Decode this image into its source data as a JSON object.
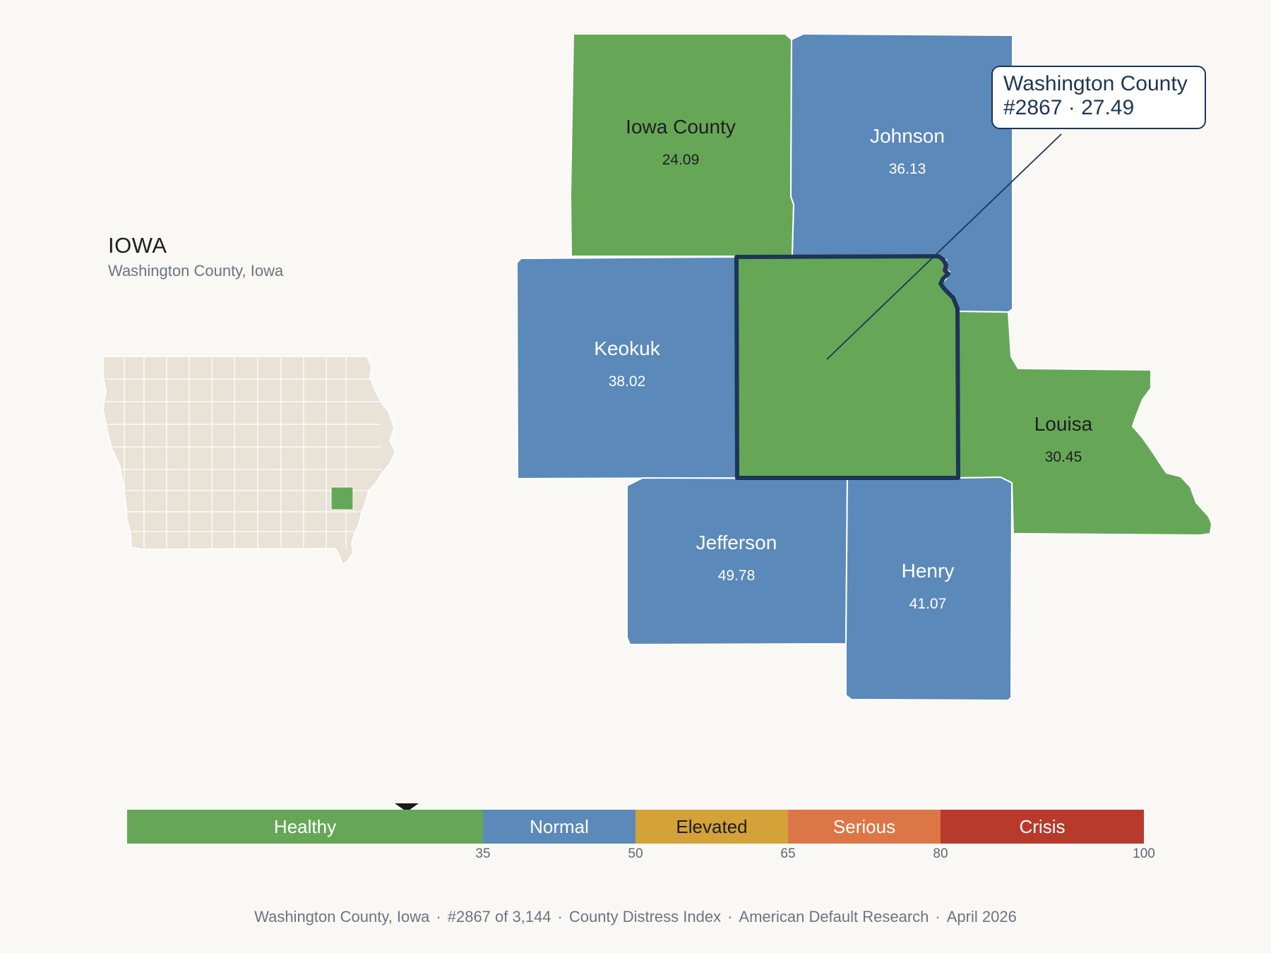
{
  "header": {
    "state": "IOWA",
    "subtitle": "Washington County, Iowa"
  },
  "legend_colors": {
    "healthy": "#66a757",
    "normal": "#5b89b9",
    "elevated": "#d3a238",
    "serious": "#dd7647",
    "crisis": "#b83a2b",
    "inset_fill": "#e8e2d7",
    "outline": "#1d3557"
  },
  "counties": [
    {
      "name": "Iowa County",
      "value": "24.09",
      "band": "healthy"
    },
    {
      "name": "Johnson",
      "value": "36.13",
      "band": "normal"
    },
    {
      "name": "Keokuk",
      "value": "38.02",
      "band": "normal"
    },
    {
      "name": "Louisa",
      "value": "30.45",
      "band": "healthy"
    },
    {
      "name": "Jefferson",
      "value": "49.78",
      "band": "normal"
    },
    {
      "name": "Henry",
      "value": "41.07",
      "band": "normal"
    },
    {
      "name": "Washington County",
      "value": "27.49",
      "band": "healthy",
      "selected": true
    }
  ],
  "callout": {
    "line1": "Washington County",
    "line2": "#2867 · 27.49"
  },
  "scale": {
    "bands": [
      {
        "label": "Healthy",
        "from": 0,
        "to": 35,
        "color": "#66a757",
        "text_color": "#ffffff"
      },
      {
        "label": "Normal",
        "from": 35,
        "to": 50,
        "color": "#5b89b9",
        "text_color": "#ffffff"
      },
      {
        "label": "Elevated",
        "from": 50,
        "to": 65,
        "color": "#d3a238",
        "text_color": "#1e1e1e"
      },
      {
        "label": "Serious",
        "from": 65,
        "to": 80,
        "color": "#dd7647",
        "text_color": "#ffffff"
      },
      {
        "label": "Crisis",
        "from": 80,
        "to": 100,
        "color": "#b83a2b",
        "text_color": "#ffffff"
      }
    ],
    "ticks": [
      "35",
      "50",
      "65",
      "80",
      "100"
    ],
    "marker_value": 27.49
  },
  "footer": {
    "place": "Washington County, Iowa",
    "rank": "#2867 of 3,144",
    "index": "County Distress Index",
    "source": "American Default Research",
    "date": "April 2026"
  }
}
